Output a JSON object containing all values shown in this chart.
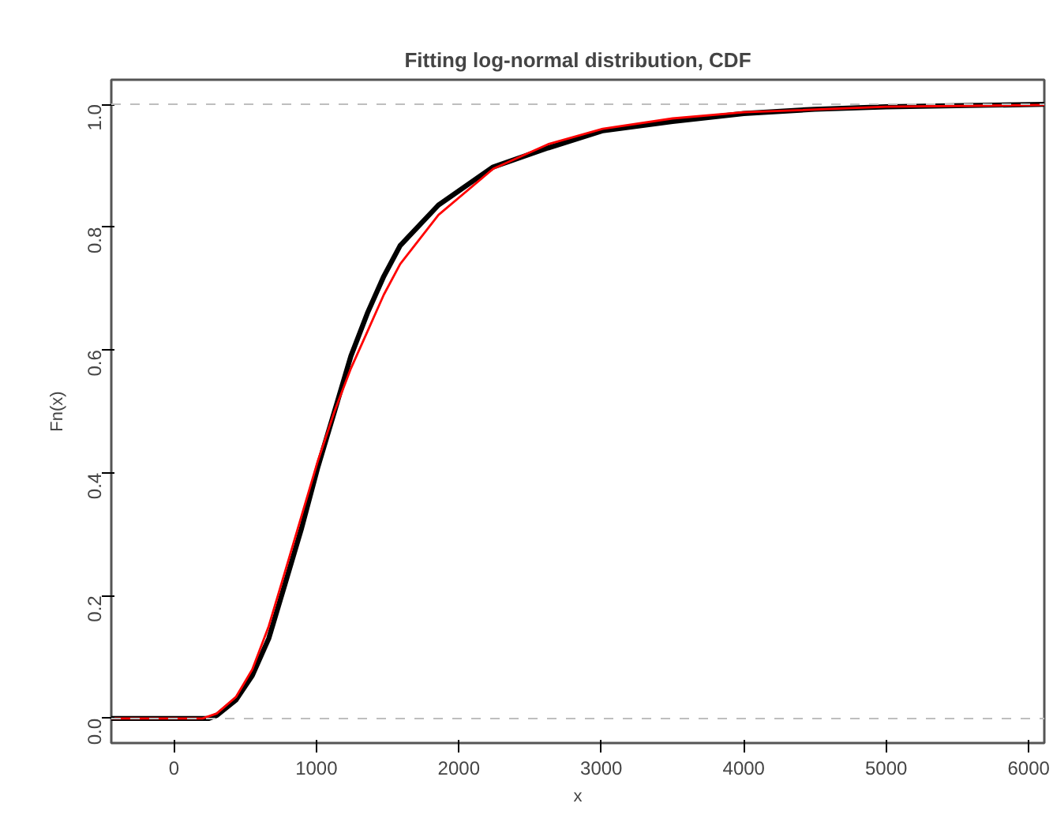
{
  "chart_data": {
    "type": "line",
    "title": "Fitting log-normal distribution, CDF",
    "xlabel": "x",
    "ylabel": "Fn(x)",
    "xlim": [
      -440,
      6110
    ],
    "ylim": [
      -0.04,
      1.04
    ],
    "xticks": [
      0,
      1000,
      2000,
      3000,
      4000,
      5000,
      6000
    ],
    "yticks": [
      {
        "value": 0,
        "label": "0.0"
      },
      0.2,
      0.4,
      0.6,
      0.8,
      {
        "value": 1,
        "label": "1.0"
      }
    ],
    "grid": false,
    "ref_lines": [
      {
        "axis": "y",
        "value": 0,
        "color": "#bebebe",
        "line_style": "dashed"
      },
      {
        "axis": "y",
        "value": 1,
        "color": "#bebebe",
        "line_style": "dashed"
      }
    ],
    "series": [
      {
        "color": "#000000",
        "x": [
          -440,
          242,
          300,
          435,
          550,
          665,
          781,
          896,
          1011,
          1127,
          1242,
          1358,
          1473,
          1588,
          1857,
          2241,
          2626,
          3010,
          3500,
          4000,
          4500,
          5000,
          6110
        ],
        "values": [
          0,
          0,
          0.005,
          0.03,
          0.07,
          0.13,
          0.22,
          0.31,
          0.41,
          0.5,
          0.59,
          0.66,
          0.72,
          0.77,
          0.836,
          0.898,
          0.929,
          0.957,
          0.972,
          0.985,
          0.992,
          0.996,
          1.0
        ]
      },
      {
        "color": "#ff0000",
        "x": [
          -440,
          200,
          300,
          435,
          550,
          665,
          781,
          896,
          1011,
          1127,
          1242,
          1358,
          1473,
          1588,
          1857,
          2241,
          2626,
          3010,
          3500,
          4000,
          5000,
          6110
        ],
        "values": [
          0,
          0,
          0.008,
          0.035,
          0.08,
          0.15,
          0.24,
          0.33,
          0.42,
          0.5,
          0.57,
          0.63,
          0.69,
          0.74,
          0.82,
          0.895,
          0.935,
          0.96,
          0.977,
          0.987,
          0.996,
          0.999
        ]
      }
    ]
  }
}
